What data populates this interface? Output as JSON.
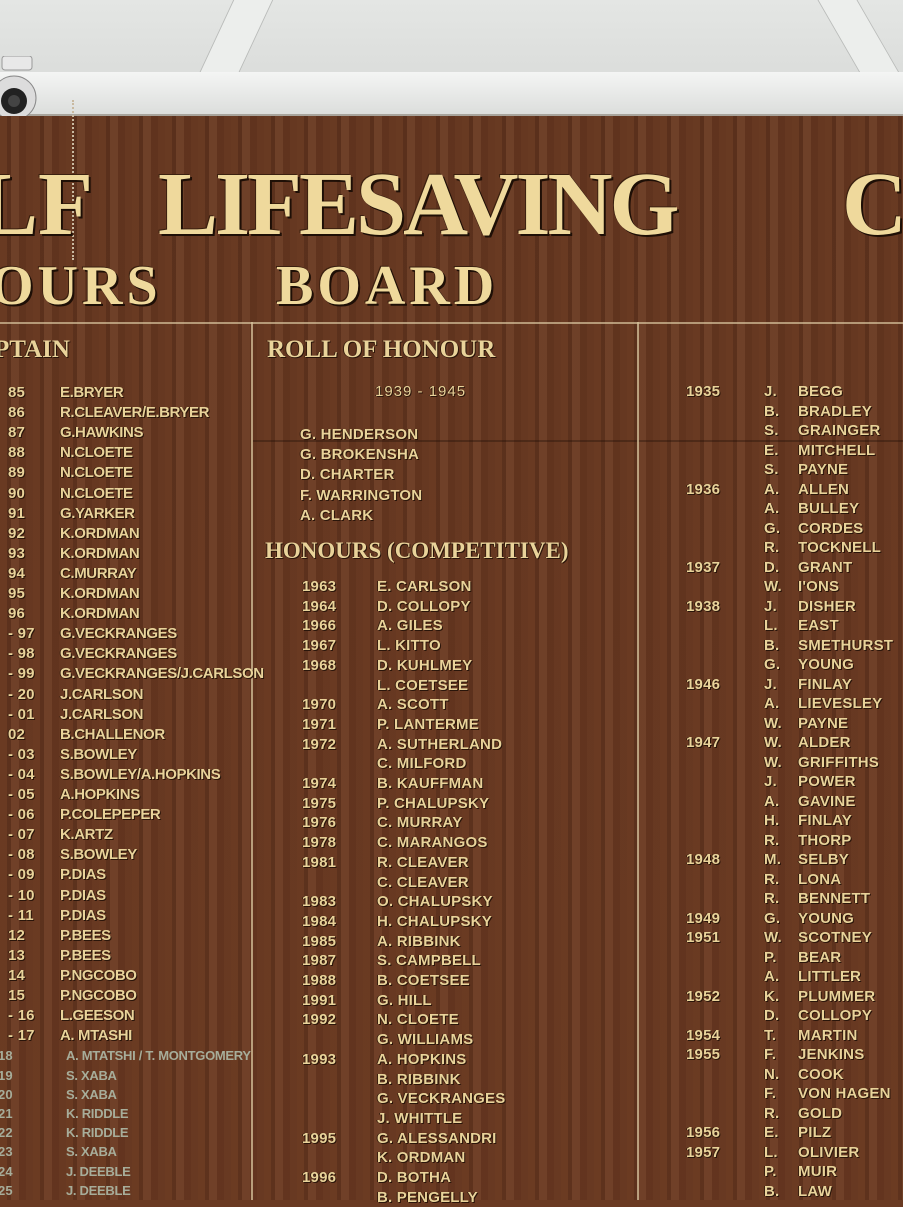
{
  "board": {
    "title_line1": [
      "LF",
      "LIFESAVING",
      "C"
    ],
    "title_line2": [
      "OURS",
      "BOARD"
    ],
    "colors": {
      "wood": "#6a3a22",
      "gold": "#e9d39a"
    }
  },
  "captain": {
    "heading": "PTAIN",
    "rows": [
      [
        "85",
        "E.BRYER"
      ],
      [
        "86",
        "R.CLEAVER/E.BRYER"
      ],
      [
        "87",
        "G.HAWKINS"
      ],
      [
        "88",
        "N.CLOETE"
      ],
      [
        "89",
        "N.CLOETE"
      ],
      [
        "90",
        "N.CLOETE"
      ],
      [
        "91",
        "G.YARKER"
      ],
      [
        "92",
        "K.ORDMAN"
      ],
      [
        "93",
        "K.ORDMAN"
      ],
      [
        "94",
        "C.MURRAY"
      ],
      [
        "95",
        "K.ORDMAN"
      ],
      [
        "96",
        "K.ORDMAN"
      ],
      [
        "- 97",
        "G.VECKRANGES"
      ],
      [
        "- 98",
        "G.VECKRANGES"
      ],
      [
        "- 99",
        "G.VECKRANGES/J.CARLSON"
      ],
      [
        "- 20",
        "J.CARLSON"
      ],
      [
        "- 01",
        "J.CARLSON"
      ],
      [
        "02",
        "B.CHALLENOR"
      ],
      [
        "- 03",
        "S.BOWLEY"
      ],
      [
        "- 04",
        "S.BOWLEY/A.HOPKINS"
      ],
      [
        "- 05",
        "A.HOPKINS"
      ],
      [
        "- 06",
        "P.COLEPEPER"
      ],
      [
        "- 07",
        "K.ARTZ"
      ],
      [
        "- 08",
        "S.BOWLEY"
      ],
      [
        "- 09",
        "P.DIAS"
      ],
      [
        "- 10",
        "P.DIAS"
      ],
      [
        "- 11",
        "P.DIAS"
      ],
      [
        "12",
        "P.BEES"
      ],
      [
        "13",
        "P.BEES"
      ],
      [
        "14",
        "P.NGCOBO"
      ],
      [
        "15",
        "P.NGCOBO"
      ],
      [
        "- 16",
        "L.GEESON"
      ],
      [
        "- 17",
        "A. MTASHI"
      ]
    ],
    "faded_rows": [
      [
        "18",
        "A. MTATSHI / T. MONTGOMERY"
      ],
      [
        "19",
        "S. XABA"
      ],
      [
        "20",
        "S. XABA"
      ],
      [
        "21",
        "K. RIDDLE"
      ],
      [
        "22",
        "K. RIDDLE"
      ],
      [
        "23",
        "S. XABA"
      ],
      [
        "24",
        "J. DEEBLE"
      ],
      [
        "25",
        "J. DEEBLE"
      ]
    ]
  },
  "roll_of_honour": {
    "heading": "ROLL OF HONOUR",
    "years": "1939  -  1945",
    "names": [
      "G. HENDERSON",
      "G. BROKENSHA",
      "D. CHARTER",
      "F. WARRINGTON",
      "A. CLARK"
    ]
  },
  "competitive": {
    "heading": "HONOURS (COMPETITIVE)",
    "rows": [
      [
        "1963",
        "E. CARLSON"
      ],
      [
        "1964",
        "D. COLLOPY"
      ],
      [
        "1966",
        "A. GILES"
      ],
      [
        "1967",
        "L. KITTO"
      ],
      [
        "1968",
        "D. KUHLMEY"
      ],
      [
        "",
        "L. COETSEE"
      ],
      [
        "1970",
        "A. SCOTT"
      ],
      [
        "1971",
        "P. LANTERME"
      ],
      [
        "1972",
        "A. SUTHERLAND"
      ],
      [
        "",
        "C. MILFORD"
      ],
      [
        "1974",
        "B. KAUFFMAN"
      ],
      [
        "1975",
        "P. CHALUPSKY"
      ],
      [
        "1976",
        "C. MURRAY"
      ],
      [
        "1978",
        "C. MARANGOS"
      ],
      [
        "1981",
        "R. CLEAVER"
      ],
      [
        "",
        "C. CLEAVER"
      ],
      [
        "1983",
        "O. CHALUPSKY"
      ],
      [
        "1984",
        "H. CHALUPSKY"
      ],
      [
        "1985",
        "A. RIBBINK"
      ],
      [
        "1987",
        "S. CAMPBELL"
      ],
      [
        "1988",
        "B. COETSEE"
      ],
      [
        "1991",
        "G. HILL"
      ],
      [
        "1992",
        "N. CLOETE"
      ],
      [
        "",
        "G. WILLIAMS"
      ],
      [
        "1993",
        "A. HOPKINS"
      ],
      [
        "",
        "B. RIBBINK"
      ],
      [
        "",
        "G. VECKRANGES"
      ],
      [
        "",
        "J. WHITTLE"
      ],
      [
        "1995",
        "G. ALESSANDRI"
      ],
      [
        "",
        "K. ORDMAN"
      ],
      [
        "1996",
        "D. BOTHA"
      ],
      [
        "",
        "B. PENGELLY"
      ]
    ]
  },
  "right_column": {
    "rows": [
      [
        "1935",
        "J.",
        "BEGG"
      ],
      [
        "",
        "B.",
        "BRADLEY"
      ],
      [
        "",
        "S.",
        "GRAINGER"
      ],
      [
        "",
        "E.",
        "MITCHELL"
      ],
      [
        "",
        "S.",
        "PAYNE"
      ],
      [
        "1936",
        "A.",
        "ALLEN"
      ],
      [
        "",
        "A.",
        "BULLEY"
      ],
      [
        "",
        "G.",
        "CORDES"
      ],
      [
        "",
        "R.",
        "TOCKNELL"
      ],
      [
        "1937",
        "D.",
        "GRANT"
      ],
      [
        "",
        "W.",
        "I'ONS"
      ],
      [
        "1938",
        "J.",
        "DISHER"
      ],
      [
        "",
        "L.",
        "EAST"
      ],
      [
        "",
        "B.",
        "SMETHURST"
      ],
      [
        "",
        "G.",
        "YOUNG"
      ],
      [
        "1946",
        "J.",
        "FINLAY"
      ],
      [
        "",
        "A.",
        "LIEVESLEY"
      ],
      [
        "",
        "W.",
        "PAYNE"
      ],
      [
        "1947",
        "W.",
        "ALDER"
      ],
      [
        "",
        "W.",
        "GRIFFITHS"
      ],
      [
        "",
        "J.",
        "POWER"
      ],
      [
        "",
        "A.",
        "GAVINE"
      ],
      [
        "",
        "H.",
        "FINLAY"
      ],
      [
        "",
        "R.",
        "THORP"
      ],
      [
        "1948",
        "M.",
        "SELBY"
      ],
      [
        "",
        "R.",
        "LONA"
      ],
      [
        "",
        "R.",
        "BENNETT"
      ],
      [
        "1949",
        "G.",
        "YOUNG"
      ],
      [
        "1951",
        "W.",
        "SCOTNEY"
      ],
      [
        "",
        "P.",
        "BEAR"
      ],
      [
        "",
        "A.",
        "LITTLER"
      ],
      [
        "1952",
        "K.",
        "PLUMMER"
      ],
      [
        "",
        "D.",
        "COLLOPY"
      ],
      [
        "1954",
        "T.",
        "MARTIN"
      ],
      [
        "1955",
        "F.",
        "JENKINS"
      ],
      [
        "",
        "N.",
        "COOK"
      ],
      [
        "",
        "F.",
        "VON HAGEN"
      ],
      [
        "",
        "R.",
        "GOLD"
      ],
      [
        "1956",
        "E.",
        "PILZ"
      ],
      [
        "1957",
        "L.",
        "OLIVIER"
      ],
      [
        "",
        "P.",
        "MUIR"
      ],
      [
        "",
        "B.",
        "LAW"
      ]
    ]
  }
}
